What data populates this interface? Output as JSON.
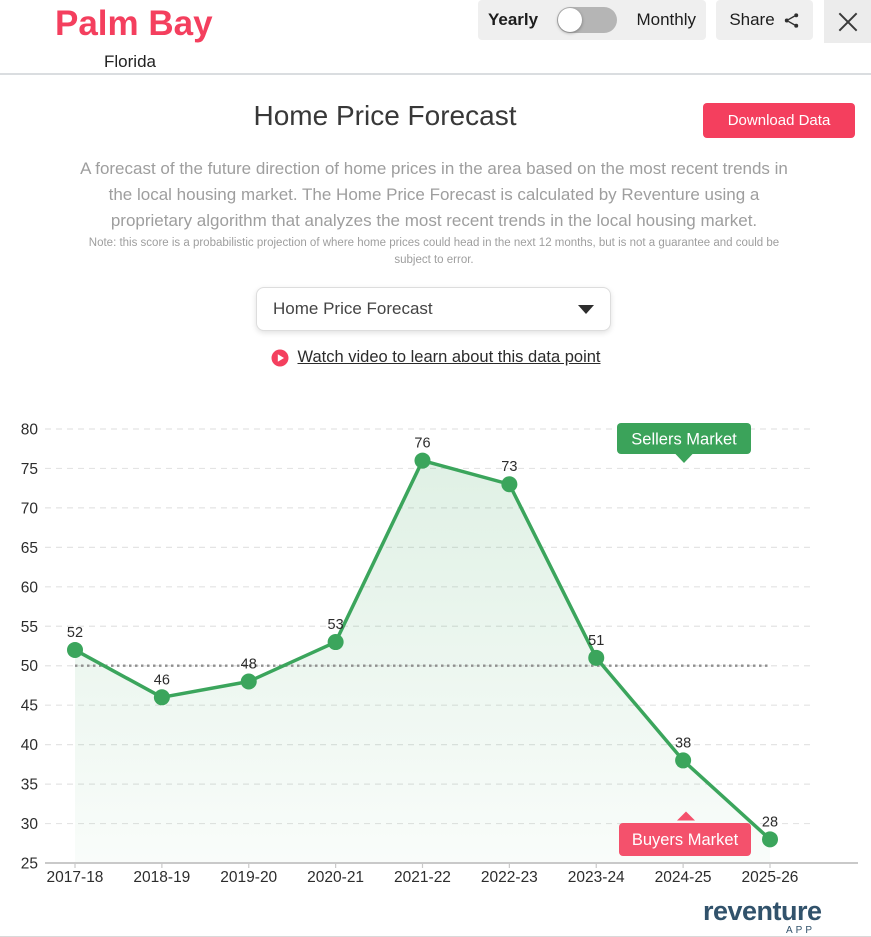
{
  "header": {
    "city": "Palm Bay",
    "state": "Florida",
    "toggle": {
      "left": "Yearly",
      "right": "Monthly",
      "selected": "Yearly"
    },
    "share_label": "Share"
  },
  "section": {
    "title": "Home Price Forecast",
    "download_button": "Download Data",
    "description": "A forecast of the future direction of home prices in the area based on the most recent trends in the local housing market. The Home Price Forecast is calculated by Reventure using a proprietary algorithm that analyzes the most recent trends in the local housing market.",
    "note": "Note: this score is a probabilistic projection of where home prices could head in the next 12 months, but is not a guarantee and could be subject to error.",
    "dropdown_value": "Home Price Forecast",
    "video_link": "Watch video to learn about this data point"
  },
  "chart_data": {
    "type": "line",
    "categories": [
      "2017-18",
      "2018-19",
      "2019-20",
      "2020-21",
      "2021-22",
      "2022-23",
      "2023-24",
      "2024-25",
      "2025-26"
    ],
    "values": [
      52,
      46,
      48,
      53,
      76,
      73,
      51,
      38,
      28
    ],
    "title": "Home Price Forecast",
    "xlabel": "",
    "ylabel": "",
    "ylim": [
      25,
      80
    ],
    "ytick_step": 5,
    "grid": "dashed-horizontal",
    "reference_line": 50,
    "annotations": {
      "sellers": {
        "label": "Sellers Market",
        "color": "#3ba35a"
      },
      "buyers": {
        "label": "Buyers Market",
        "color": "#f4516c"
      }
    },
    "colors": {
      "line": "#3ba55c",
      "point": "#3ba55c",
      "fill_top": "rgba(59,165,92,0.16)",
      "fill_bottom": "rgba(59,165,92,0.03)",
      "grid": "#e4e4e4",
      "reference": "#8f8f8f",
      "axis": "#c9c9c9",
      "label": "#2c2c2c"
    }
  },
  "footer": {
    "brand": "reventure",
    "brand_sub": "APP"
  },
  "theme": {
    "accent_pink": "#f43f5e",
    "green": "#3ba55c",
    "brand_navy": "#31526b"
  }
}
